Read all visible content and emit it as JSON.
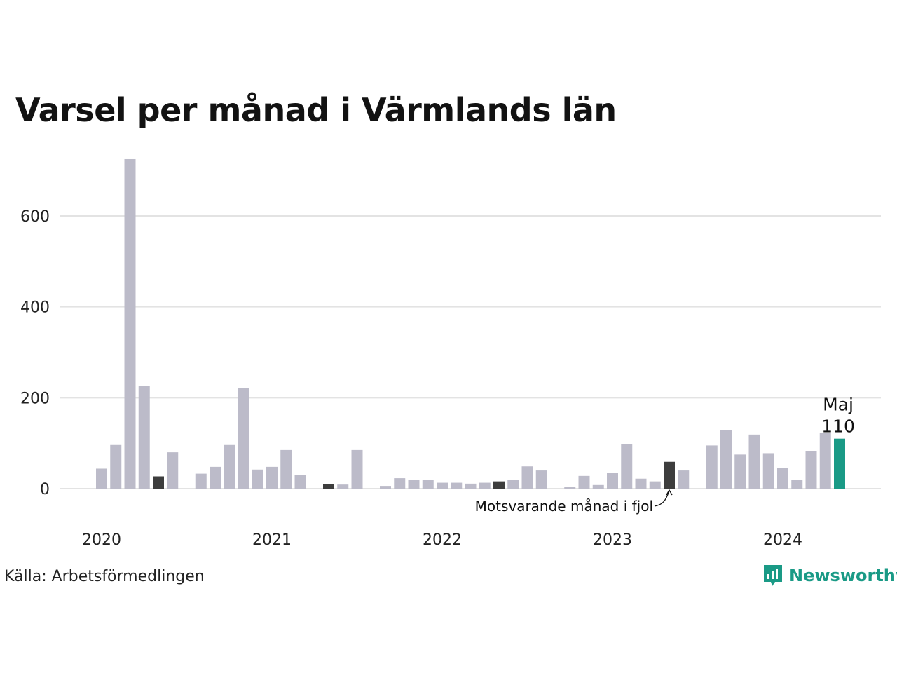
{
  "title": "Varsel per månad i Värmlands län",
  "source": "Källa: Arbetsförmedlingen",
  "brand": {
    "name": "Newsworthy",
    "icon": "newsworthy-logo-icon",
    "color": "#1a9a86"
  },
  "colors": {
    "bar": "#bcbbc9",
    "same_month_last_year": "#3d3d3d",
    "current": "#1a9a86",
    "grid": "#e3e3e3"
  },
  "chart_data": {
    "type": "bar",
    "title": "Varsel per månad i Värmlands län",
    "xlabel": "",
    "ylabel": "",
    "ylim": [
      0,
      730
    ],
    "yticks": [
      0,
      200,
      400,
      600
    ],
    "grid": true,
    "year_labels": [
      "2020",
      "2021",
      "2022",
      "2023",
      "2024"
    ],
    "categories": [
      "2020-01",
      "2020-02",
      "2020-03",
      "2020-04",
      "2020-05",
      "2020-06",
      "2020-07",
      "2020-08",
      "2020-09",
      "2020-10",
      "2020-11",
      "2020-12",
      "2021-01",
      "2021-02",
      "2021-03",
      "2021-04",
      "2021-05",
      "2021-06",
      "2021-07",
      "2021-08",
      "2021-09",
      "2021-10",
      "2021-11",
      "2021-12",
      "2022-01",
      "2022-02",
      "2022-03",
      "2022-04",
      "2022-05",
      "2022-06",
      "2022-07",
      "2022-08",
      "2022-09",
      "2022-10",
      "2022-11",
      "2022-12",
      "2023-01",
      "2023-02",
      "2023-03",
      "2023-04",
      "2023-05",
      "2023-06",
      "2023-07",
      "2023-08",
      "2023-09",
      "2023-10",
      "2023-11",
      "2023-12",
      "2024-01",
      "2024-02",
      "2024-03",
      "2024-04",
      "2024-05"
    ],
    "values": [
      44,
      96,
      725,
      226,
      27,
      80,
      0,
      33,
      48,
      96,
      221,
      42,
      48,
      85,
      30,
      0,
      10,
      9,
      85,
      0,
      6,
      23,
      19,
      19,
      13,
      13,
      11,
      13,
      16,
      19,
      49,
      40,
      0,
      4,
      28,
      8,
      35,
      98,
      22,
      16,
      59,
      40,
      0,
      95,
      129,
      75,
      119,
      78,
      45,
      20,
      82,
      122,
      110
    ],
    "highlight_same_month_last_year": [
      "2020-05",
      "2021-05",
      "2022-05",
      "2023-05"
    ],
    "highlight_current": "2024-05",
    "annotations": {
      "current_month": "Maj",
      "current_value": "110",
      "last_year_label": "Motsvarande månad i fjol"
    }
  }
}
